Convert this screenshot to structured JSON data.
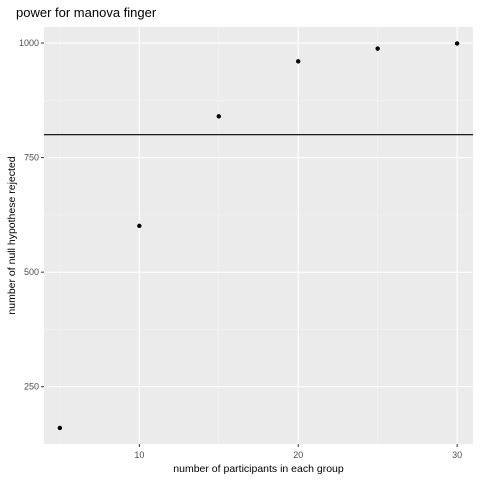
{
  "chart_data": {
    "type": "scatter",
    "title": "power for manova finger",
    "xlabel": "number of participants in each group",
    "ylabel": "number of null hypothese rejected",
    "x": [
      5,
      10,
      15,
      20,
      25,
      30
    ],
    "y": [
      160,
      601,
      840,
      960,
      988,
      999
    ],
    "xlim": [
      4,
      31
    ],
    "ylim": [
      125,
      1035
    ],
    "xticks": [
      10,
      20,
      30
    ],
    "yticks": [
      250,
      500,
      750,
      1000
    ],
    "x_tick_labels": [
      "10",
      "20",
      "30"
    ],
    "y_tick_labels": [
      "250",
      "500",
      "750",
      "1000"
    ],
    "hline": 800,
    "grid": true,
    "legend": "none"
  },
  "colors": {
    "panel_background": "#ebebeb",
    "grid_major": "#ffffff",
    "grid_minor": "#f5f5f5",
    "point": "#000000",
    "hline": "#000000",
    "tick_label": "#4d4d4d"
  }
}
